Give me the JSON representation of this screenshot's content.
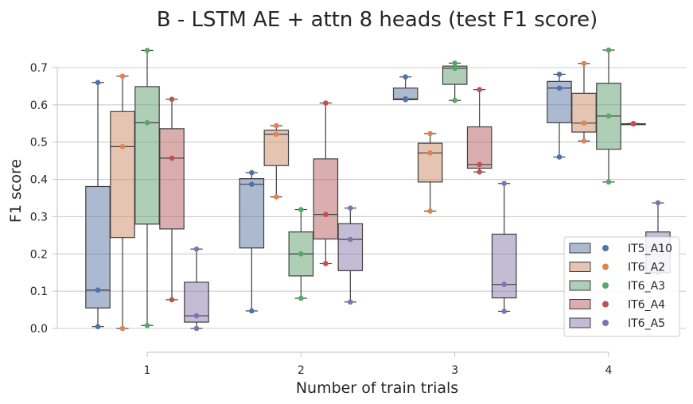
{
  "chart_data": {
    "type": "box",
    "title": "B - LSTM AE + attn 8 heads (test F1 score)",
    "xlabel": "Number of train trials",
    "ylabel": "F1 score",
    "categories": [
      "1",
      "2",
      "3",
      "4"
    ],
    "yticks": [
      0.0,
      0.1,
      0.2,
      0.3,
      0.4,
      0.5,
      0.6,
      0.7
    ],
    "ylim": [
      -0.02,
      0.76
    ],
    "grid": "horizontal",
    "legend_position": "lower-right",
    "series": [
      {
        "name": "IT5_A10",
        "color": "#4C72B0",
        "boxes": [
          {
            "min": 0.005,
            "q1": 0.055,
            "median": 0.103,
            "q3": 0.381,
            "max": 0.66,
            "points": [
              0.005,
              0.103,
              0.66
            ]
          },
          {
            "min": 0.047,
            "q1": 0.216,
            "median": 0.387,
            "q3": 0.402,
            "max": 0.418,
            "points": [
              0.047,
              0.387,
              0.418
            ]
          },
          {
            "min": 0.614,
            "q1": 0.614,
            "median": 0.616,
            "q3": 0.645,
            "max": 0.675,
            "points": [
              0.614,
              0.616,
              0.675
            ]
          },
          {
            "min": 0.46,
            "q1": 0.552,
            "median": 0.645,
            "q3": 0.663,
            "max": 0.682,
            "points": [
              0.46,
              0.645,
              0.682
            ]
          }
        ]
      },
      {
        "name": "IT6_A2",
        "color": "#DD8452",
        "boxes": [
          {
            "min": 0.0,
            "q1": 0.244,
            "median": 0.488,
            "q3": 0.582,
            "max": 0.677,
            "points": [
              0.0,
              0.488,
              0.677
            ]
          },
          {
            "min": 0.353,
            "q1": 0.437,
            "median": 0.521,
            "q3": 0.532,
            "max": 0.544,
            "points": [
              0.353,
              0.521,
              0.544
            ]
          },
          {
            "min": 0.315,
            "q1": 0.393,
            "median": 0.471,
            "q3": 0.497,
            "max": 0.523,
            "points": [
              0.315,
              0.471,
              0.523
            ]
          },
          {
            "min": 0.503,
            "q1": 0.527,
            "median": 0.551,
            "q3": 0.631,
            "max": 0.711,
            "points": [
              0.503,
              0.551,
              0.711
            ]
          }
        ]
      },
      {
        "name": "IT6_A3",
        "color": "#55A868",
        "boxes": [
          {
            "min": 0.008,
            "q1": 0.28,
            "median": 0.552,
            "q3": 0.649,
            "max": 0.746,
            "points": [
              0.008,
              0.552,
              0.746
            ]
          },
          {
            "min": 0.081,
            "q1": 0.141,
            "median": 0.2,
            "q3": 0.259,
            "max": 0.319,
            "points": [
              0.081,
              0.2,
              0.319
            ]
          },
          {
            "min": 0.612,
            "q1": 0.655,
            "median": 0.698,
            "q3": 0.704,
            "max": 0.712,
            "points": [
              0.612,
              0.698,
              0.712
            ]
          },
          {
            "min": 0.393,
            "q1": 0.481,
            "median": 0.57,
            "q3": 0.658,
            "max": 0.747,
            "points": [
              0.393,
              0.57,
              0.747
            ]
          }
        ]
      },
      {
        "name": "IT6_A4",
        "color": "#C44E52",
        "boxes": [
          {
            "min": 0.077,
            "q1": 0.267,
            "median": 0.457,
            "q3": 0.536,
            "max": 0.615,
            "points": [
              0.077,
              0.457,
              0.615
            ]
          },
          {
            "min": 0.174,
            "q1": 0.24,
            "median": 0.306,
            "q3": 0.455,
            "max": 0.605,
            "points": [
              0.174,
              0.306,
              0.605
            ]
          },
          {
            "min": 0.42,
            "q1": 0.43,
            "median": 0.44,
            "q3": 0.541,
            "max": 0.641,
            "points": [
              0.42,
              0.44,
              0.641
            ]
          },
          {
            "min": 0.549,
            "q1": 0.549,
            "median": 0.549,
            "q3": 0.549,
            "max": 0.55,
            "points": [
              0.549,
              0.549,
              0.55
            ]
          }
        ]
      },
      {
        "name": "IT6_A5",
        "color": "#8172B3",
        "boxes": [
          {
            "min": 0.0,
            "q1": 0.017,
            "median": 0.034,
            "q3": 0.124,
            "max": 0.213,
            "points": [
              0.0,
              0.034,
              0.213
            ]
          },
          {
            "min": 0.071,
            "q1": 0.155,
            "median": 0.239,
            "q3": 0.281,
            "max": 0.323,
            "points": [
              0.071,
              0.239,
              0.323
            ]
          },
          {
            "min": 0.046,
            "q1": 0.082,
            "median": 0.118,
            "q3": 0.253,
            "max": 0.389,
            "points": [
              0.046,
              0.118,
              0.389
            ]
          },
          {
            "min": 0.15,
            "q1": 0.15,
            "median": 0.22,
            "q3": 0.259,
            "max": 0.337,
            "points": [
              0.15,
              0.22,
              0.337
            ]
          }
        ]
      }
    ]
  },
  "legend": {
    "items": [
      "IT5_A10",
      "IT6_A2",
      "IT6_A3",
      "IT6_A4",
      "IT6_A5"
    ]
  }
}
